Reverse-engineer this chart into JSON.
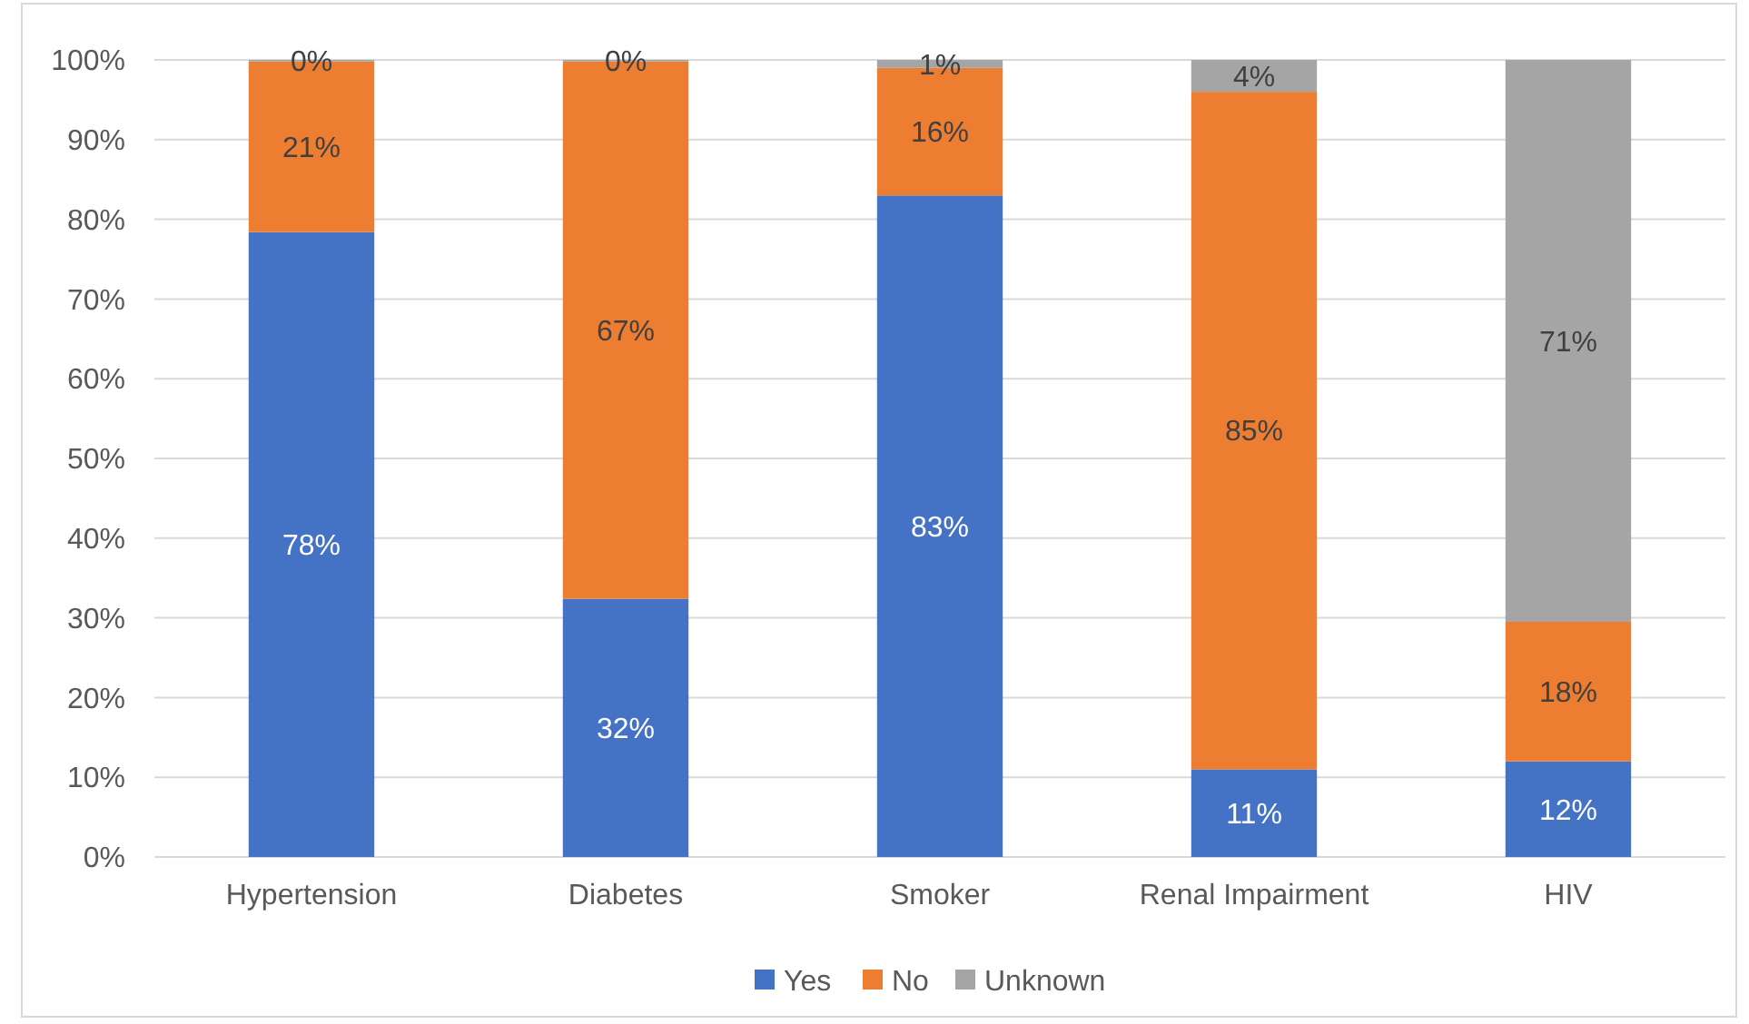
{
  "chart_data": {
    "type": "bar",
    "stacked": true,
    "categories": [
      "Hypertension",
      "Diabetes",
      "Smoker",
      "Renal Impairment",
      "HIV"
    ],
    "series": [
      {
        "name": "Yes",
        "color": "#4472c4",
        "values": [
          78.4,
          32.4,
          83,
          11,
          12
        ],
        "value_labels": [
          "78%",
          "32%",
          "83%",
          "11%",
          "12%"
        ]
      },
      {
        "name": "No",
        "color": "#ed7d31",
        "values": [
          21.4,
          67.4,
          16,
          85,
          17.5
        ],
        "value_labels": [
          "21%",
          "67%",
          "16%",
          "85%",
          "18%"
        ]
      },
      {
        "name": "Unknown",
        "color": "#a5a5a5",
        "values": [
          0.2,
          0.2,
          1,
          4,
          70.5
        ],
        "value_labels": [
          "0%",
          "0%",
          "1%",
          "4%",
          "71%"
        ]
      }
    ],
    "ylim": [
      0,
      100
    ],
    "yticks": [
      {
        "value": 0,
        "label": "0%"
      },
      {
        "value": 10,
        "label": "10%"
      },
      {
        "value": 20,
        "label": "20%"
      },
      {
        "value": 30,
        "label": "30%"
      },
      {
        "value": 40,
        "label": "40%"
      },
      {
        "value": 50,
        "label": "50%"
      },
      {
        "value": 60,
        "label": "60%"
      },
      {
        "value": 70,
        "label": "70%"
      },
      {
        "value": 80,
        "label": "80%"
      },
      {
        "value": 90,
        "label": "90%"
      },
      {
        "value": 100,
        "label": "100%"
      }
    ],
    "grid": "y",
    "legend": "bottom"
  }
}
